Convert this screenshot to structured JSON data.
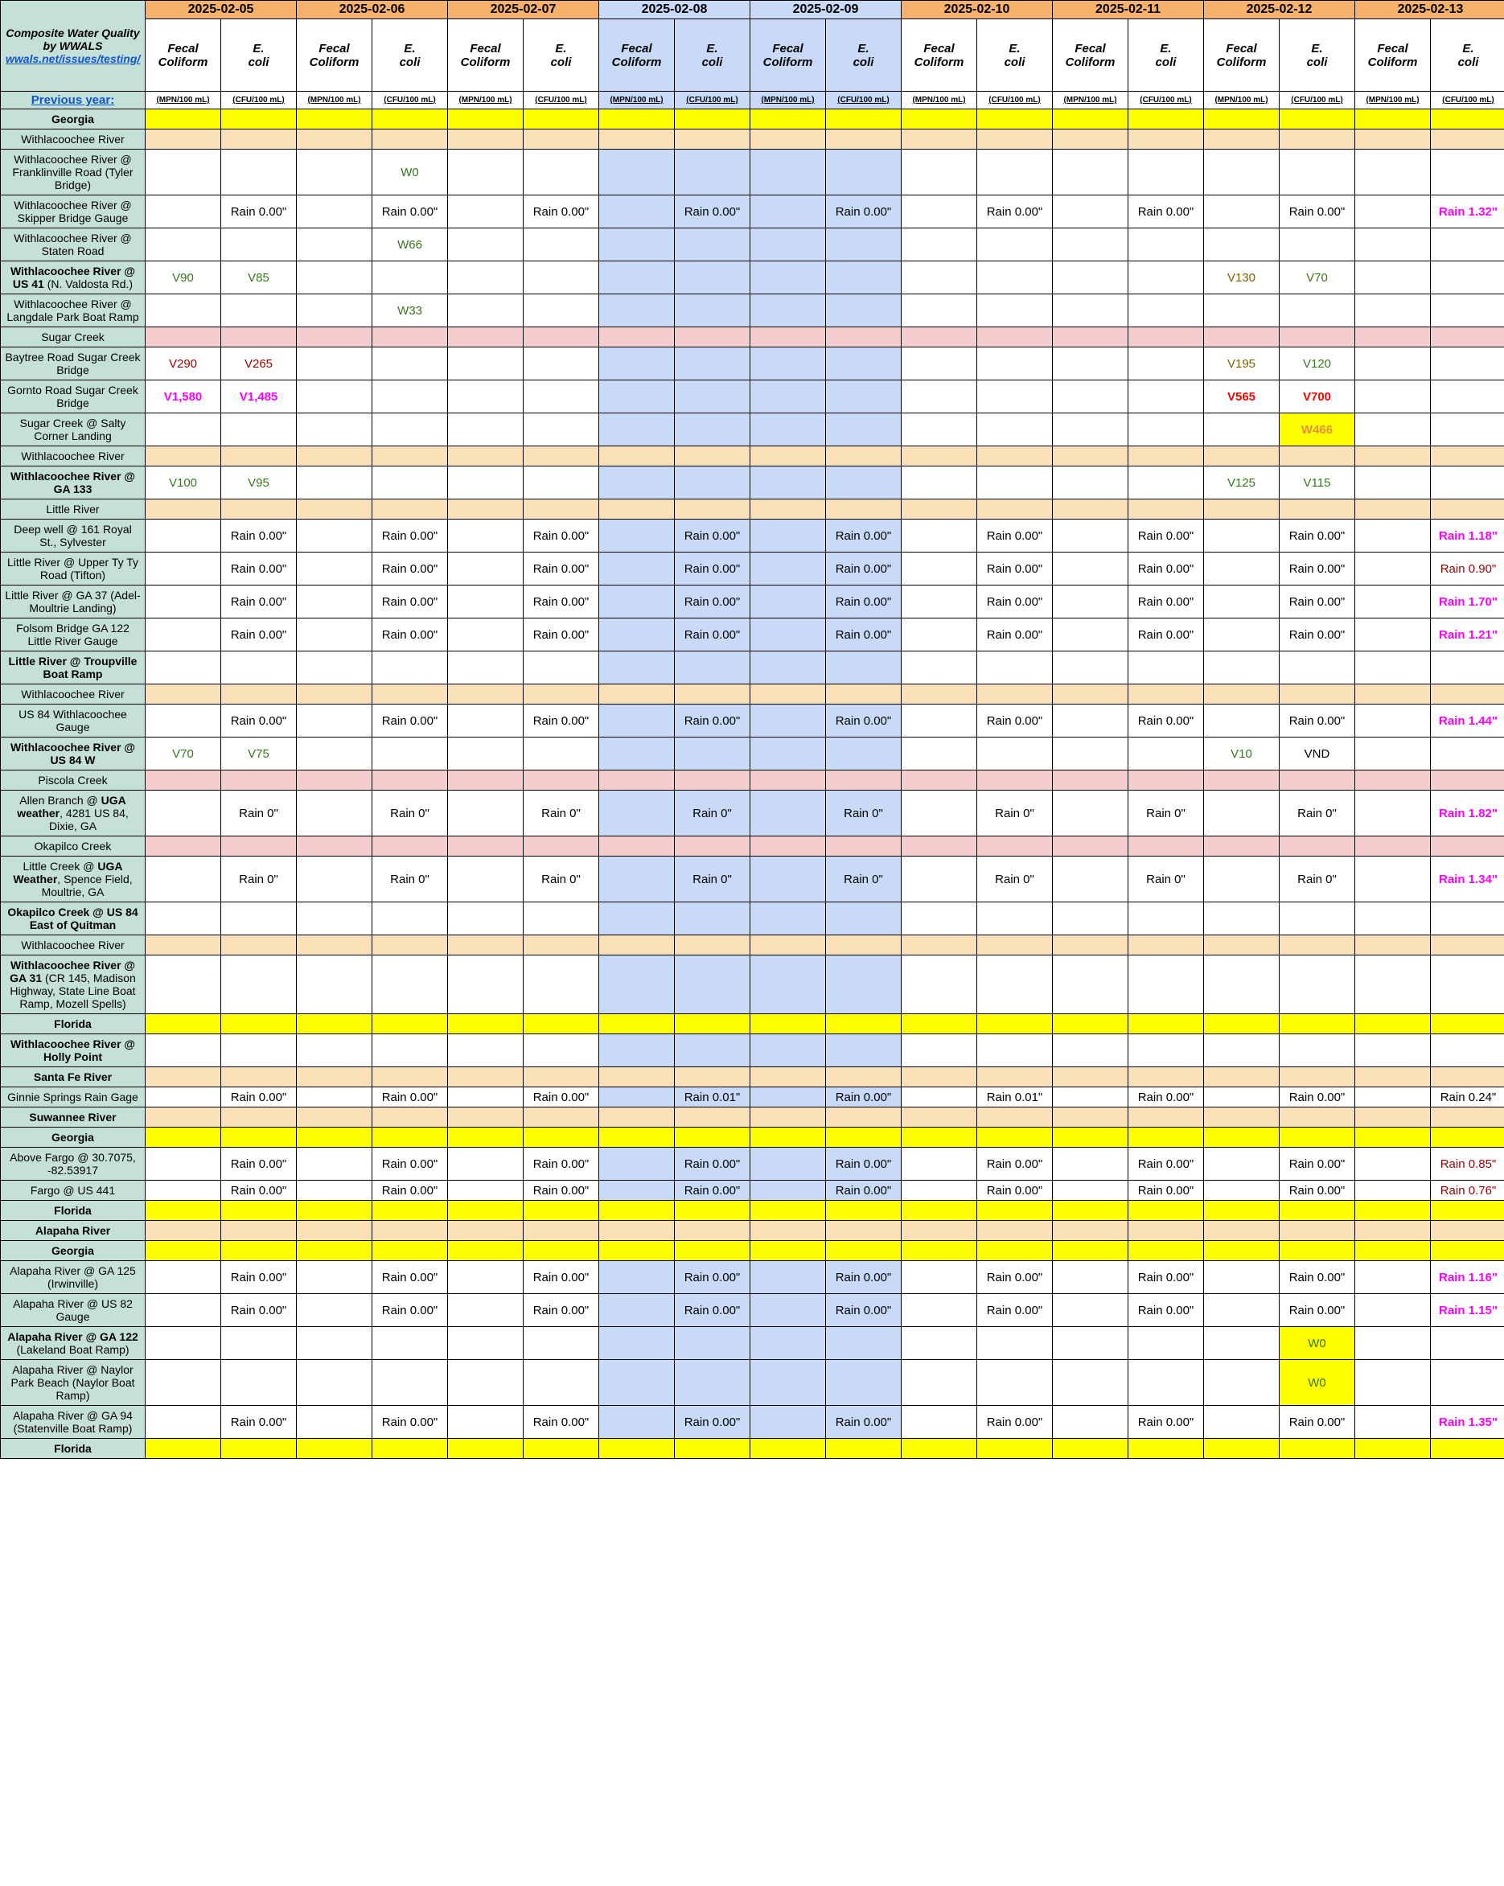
{
  "header": {
    "title": "Composite Water Quality by WWALS",
    "link_text": "wwals.net/issues/testing/",
    "prev_year": "Previous year:"
  },
  "dates": [
    "2025-02-05",
    "2025-02-06",
    "2025-02-07",
    "2025-02-08",
    "2025-02-09",
    "2025-02-10",
    "2025-02-11",
    "2025-02-12",
    "2025-02-13"
  ],
  "weekend_cols": [
    3,
    4
  ],
  "subheaders": {
    "fecal": "Fecal Coliform",
    "ecoli": "E. coli"
  },
  "units": {
    "fecal": "(MPN/100 mL)",
    "ecoli": "(CFU/100 mL)"
  },
  "colors": {
    "green": "#38761d",
    "darkred": "#990000",
    "red": "#ff0000",
    "magenta": "#ff00ff",
    "olive": "#7f6000",
    "orange": "#e69138",
    "tan": "#f9e0b7",
    "pink": "#f4cccc",
    "yellow": "#ffff00",
    "blue": "#c9daf8",
    "teal": "#c5e0d8",
    "dateOrange": "#f6b26b"
  },
  "rows": [
    {
      "label": "Georgia",
      "bold": true,
      "fill": "yellow",
      "cells": []
    },
    {
      "label": "Withlacoochee River",
      "fill": "tan",
      "cells": []
    },
    {
      "label": "Withlacoochee River @ Franklinville Road (Tyler Bridge)",
      "cells": [
        {
          "d": 1,
          "c": 1,
          "v": "W0",
          "cls": "txt-green"
        }
      ]
    },
    {
      "label": "Withlacoochee River @ Skipper Bridge Gauge",
      "cells": [
        {
          "d": 0,
          "c": 1,
          "v": "Rain 0.00\""
        },
        {
          "d": 1,
          "c": 1,
          "v": "Rain 0.00\""
        },
        {
          "d": 2,
          "c": 1,
          "v": "Rain 0.00\""
        },
        {
          "d": 3,
          "c": 1,
          "v": "Rain 0.00\""
        },
        {
          "d": 4,
          "c": 1,
          "v": "Rain 0.00\""
        },
        {
          "d": 5,
          "c": 1,
          "v": "Rain 0.00\""
        },
        {
          "d": 6,
          "c": 1,
          "v": "Rain 0.00\""
        },
        {
          "d": 7,
          "c": 1,
          "v": "Rain 0.00\""
        },
        {
          "d": 8,
          "c": 1,
          "v": "Rain 1.32\"",
          "cls": "txt-magenta"
        }
      ]
    },
    {
      "label": "Withlacoochee River @ Staten Road",
      "cells": [
        {
          "d": 1,
          "c": 1,
          "v": "W66",
          "cls": "txt-green"
        }
      ]
    },
    {
      "label": "Withlacoochee River @ US 41 (N. Valdosta Rd.)",
      "boldPrefix": "Withlacoochee River @ US 41",
      "suffix": " (N. Valdosta Rd.)",
      "cells": [
        {
          "d": 0,
          "c": 0,
          "v": "V90",
          "cls": "txt-green"
        },
        {
          "d": 0,
          "c": 1,
          "v": "V85",
          "cls": "txt-green"
        },
        {
          "d": 7,
          "c": 0,
          "v": "V130",
          "cls": "txt-olive"
        },
        {
          "d": 7,
          "c": 1,
          "v": "V70",
          "cls": "txt-green"
        }
      ]
    },
    {
      "label": "Withlacoochee River @ Langdale Park Boat Ramp",
      "cells": [
        {
          "d": 1,
          "c": 1,
          "v": "W33",
          "cls": "txt-green"
        }
      ]
    },
    {
      "label": "Sugar Creek",
      "fill": "pink",
      "cells": []
    },
    {
      "label": "Baytree Road Sugar Creek Bridge",
      "cells": [
        {
          "d": 0,
          "c": 0,
          "v": "V290",
          "cls": "txt-darkred"
        },
        {
          "d": 0,
          "c": 1,
          "v": "V265",
          "cls": "txt-darkred"
        },
        {
          "d": 7,
          "c": 0,
          "v": "V195",
          "cls": "txt-olive"
        },
        {
          "d": 7,
          "c": 1,
          "v": "V120",
          "cls": "txt-green"
        }
      ]
    },
    {
      "label": "Gornto Road Sugar Creek Bridge",
      "cells": [
        {
          "d": 0,
          "c": 0,
          "v": "V1,580",
          "cls": "txt-magenta"
        },
        {
          "d": 0,
          "c": 1,
          "v": "V1,485",
          "cls": "txt-magenta"
        },
        {
          "d": 7,
          "c": 0,
          "v": "V565",
          "cls": "txt-red"
        },
        {
          "d": 7,
          "c": 1,
          "v": "V700",
          "cls": "txt-red"
        }
      ]
    },
    {
      "label": "Sugar Creek @ Salty Corner Landing",
      "cells": [
        {
          "d": 7,
          "c": 1,
          "v": "W466",
          "cls": "txt-orange",
          "hl": "yellow"
        }
      ]
    },
    {
      "label": "Withlacoochee River",
      "fill": "tan",
      "cells": []
    },
    {
      "label": "Withlacoochee River @ GA 133",
      "bold": true,
      "cells": [
        {
          "d": 0,
          "c": 0,
          "v": "V100",
          "cls": "txt-green"
        },
        {
          "d": 0,
          "c": 1,
          "v": "V95",
          "cls": "txt-green"
        },
        {
          "d": 7,
          "c": 0,
          "v": "V125",
          "cls": "txt-green"
        },
        {
          "d": 7,
          "c": 1,
          "v": "V115",
          "cls": "txt-green"
        }
      ]
    },
    {
      "label": "Little River",
      "fill": "tan",
      "cells": []
    },
    {
      "label": "Deep well @ 161 Royal St., Sylvester",
      "cells": [
        {
          "d": 0,
          "c": 1,
          "v": "Rain 0.00\""
        },
        {
          "d": 1,
          "c": 1,
          "v": "Rain 0.00\""
        },
        {
          "d": 2,
          "c": 1,
          "v": "Rain 0.00\""
        },
        {
          "d": 3,
          "c": 1,
          "v": "Rain 0.00\""
        },
        {
          "d": 4,
          "c": 1,
          "v": "Rain 0.00\""
        },
        {
          "d": 5,
          "c": 1,
          "v": "Rain 0.00\""
        },
        {
          "d": 6,
          "c": 1,
          "v": "Rain 0.00\""
        },
        {
          "d": 7,
          "c": 1,
          "v": "Rain 0.00\""
        },
        {
          "d": 8,
          "c": 1,
          "v": "Rain 1.18\"",
          "cls": "txt-magenta"
        }
      ]
    },
    {
      "label": "Little River @ Upper Ty Ty Road (Tifton)",
      "cells": [
        {
          "d": 0,
          "c": 1,
          "v": "Rain 0.00\""
        },
        {
          "d": 1,
          "c": 1,
          "v": "Rain 0.00\""
        },
        {
          "d": 2,
          "c": 1,
          "v": "Rain 0.00\""
        },
        {
          "d": 3,
          "c": 1,
          "v": "Rain 0.00\""
        },
        {
          "d": 4,
          "c": 1,
          "v": "Rain 0.00\""
        },
        {
          "d": 5,
          "c": 1,
          "v": "Rain 0.00\""
        },
        {
          "d": 6,
          "c": 1,
          "v": "Rain 0.00\""
        },
        {
          "d": 7,
          "c": 1,
          "v": "Rain 0.00\""
        },
        {
          "d": 8,
          "c": 1,
          "v": "Rain 0.90\"",
          "cls": "txt-darkred"
        }
      ]
    },
    {
      "label": "Little River @ GA 37 (Adel-Moultrie Landing)",
      "cells": [
        {
          "d": 0,
          "c": 1,
          "v": "Rain 0.00\""
        },
        {
          "d": 1,
          "c": 1,
          "v": "Rain 0.00\""
        },
        {
          "d": 2,
          "c": 1,
          "v": "Rain 0.00\""
        },
        {
          "d": 3,
          "c": 1,
          "v": "Rain 0.00\""
        },
        {
          "d": 4,
          "c": 1,
          "v": "Rain 0.00\""
        },
        {
          "d": 5,
          "c": 1,
          "v": "Rain 0.00\""
        },
        {
          "d": 6,
          "c": 1,
          "v": "Rain 0.00\""
        },
        {
          "d": 7,
          "c": 1,
          "v": "Rain 0.00\""
        },
        {
          "d": 8,
          "c": 1,
          "v": "Rain 1.70\"",
          "cls": "txt-magenta"
        }
      ]
    },
    {
      "label": "Folsom Bridge GA 122 Little River Gauge",
      "cells": [
        {
          "d": 0,
          "c": 1,
          "v": "Rain 0.00\""
        },
        {
          "d": 1,
          "c": 1,
          "v": "Rain 0.00\""
        },
        {
          "d": 2,
          "c": 1,
          "v": "Rain 0.00\""
        },
        {
          "d": 3,
          "c": 1,
          "v": "Rain 0.00\""
        },
        {
          "d": 4,
          "c": 1,
          "v": "Rain 0.00\""
        },
        {
          "d": 5,
          "c": 1,
          "v": "Rain 0.00\""
        },
        {
          "d": 6,
          "c": 1,
          "v": "Rain 0.00\""
        },
        {
          "d": 7,
          "c": 1,
          "v": "Rain 0.00\""
        },
        {
          "d": 8,
          "c": 1,
          "v": "Rain 1.21\"",
          "cls": "txt-magenta"
        }
      ]
    },
    {
      "label": "Little River @ Troupville Boat Ramp",
      "bold": true,
      "cells": []
    },
    {
      "label": "Withlacoochee River",
      "fill": "tan",
      "cells": []
    },
    {
      "label": "US 84 Withlacoochee Gauge",
      "cells": [
        {
          "d": 0,
          "c": 1,
          "v": "Rain 0.00\""
        },
        {
          "d": 1,
          "c": 1,
          "v": "Rain 0.00\""
        },
        {
          "d": 2,
          "c": 1,
          "v": "Rain 0.00\""
        },
        {
          "d": 3,
          "c": 1,
          "v": "Rain 0.00\""
        },
        {
          "d": 4,
          "c": 1,
          "v": "Rain 0.00\""
        },
        {
          "d": 5,
          "c": 1,
          "v": "Rain 0.00\""
        },
        {
          "d": 6,
          "c": 1,
          "v": "Rain 0.00\""
        },
        {
          "d": 7,
          "c": 1,
          "v": "Rain 0.00\""
        },
        {
          "d": 8,
          "c": 1,
          "v": "Rain 1.44\"",
          "cls": "txt-magenta"
        }
      ]
    },
    {
      "label": "Withlacoochee River @ US 84 W",
      "bold": true,
      "cells": [
        {
          "d": 0,
          "c": 0,
          "v": "V70",
          "cls": "txt-green"
        },
        {
          "d": 0,
          "c": 1,
          "v": "V75",
          "cls": "txt-green"
        },
        {
          "d": 7,
          "c": 0,
          "v": "V10",
          "cls": "txt-green"
        },
        {
          "d": 7,
          "c": 1,
          "v": "VND"
        }
      ]
    },
    {
      "label": "Piscola Creek",
      "fill": "pink",
      "cells": []
    },
    {
      "label": "Allen  Branch @ UGA weather, 4281 US 84, Dixie, GA",
      "boldPart": "UGA weather",
      "cells": [
        {
          "d": 0,
          "c": 1,
          "v": "Rain 0\""
        },
        {
          "d": 1,
          "c": 1,
          "v": "Rain 0\""
        },
        {
          "d": 2,
          "c": 1,
          "v": "Rain 0\""
        },
        {
          "d": 3,
          "c": 1,
          "v": "Rain 0\""
        },
        {
          "d": 4,
          "c": 1,
          "v": "Rain 0\""
        },
        {
          "d": 5,
          "c": 1,
          "v": "Rain 0\""
        },
        {
          "d": 6,
          "c": 1,
          "v": "Rain 0\""
        },
        {
          "d": 7,
          "c": 1,
          "v": "Rain 0\""
        },
        {
          "d": 8,
          "c": 1,
          "v": "Rain 1.82\"",
          "cls": "txt-magenta"
        }
      ]
    },
    {
      "label": "Okapilco Creek",
      "fill": "pink",
      "cells": []
    },
    {
      "label": "Little Creek @ UGA Weather, Spence Field, Moultrie, GA",
      "boldPart": "UGA Weather",
      "cells": [
        {
          "d": 0,
          "c": 1,
          "v": "Rain 0\""
        },
        {
          "d": 1,
          "c": 1,
          "v": "Rain 0\""
        },
        {
          "d": 2,
          "c": 1,
          "v": "Rain 0\""
        },
        {
          "d": 3,
          "c": 1,
          "v": "Rain 0\""
        },
        {
          "d": 4,
          "c": 1,
          "v": "Rain 0\""
        },
        {
          "d": 5,
          "c": 1,
          "v": "Rain 0\""
        },
        {
          "d": 6,
          "c": 1,
          "v": "Rain 0\""
        },
        {
          "d": 7,
          "c": 1,
          "v": "Rain 0\""
        },
        {
          "d": 8,
          "c": 1,
          "v": "Rain 1.34\"",
          "cls": "txt-magenta"
        }
      ]
    },
    {
      "label": "Okapilco Creek @ US 84 East of Quitman",
      "bold": true,
      "cells": []
    },
    {
      "label": "Withlacoochee River",
      "fill": "tan",
      "cells": []
    },
    {
      "label": "Withlacoochee River @ GA 31 (CR 145, Madison Highway, State Line Boat Ramp, Mozell Spells)",
      "boldPrefix": "Withlacoochee River @ GA 31",
      "suffix": " (CR 145, Madison Highway, State Line Boat Ramp, Mozell Spells)",
      "cells": []
    },
    {
      "label": "Florida",
      "bold": true,
      "fill": "yellow",
      "cells": []
    },
    {
      "label": "Withlacoochee River @ Holly Point",
      "bold": true,
      "cells": []
    },
    {
      "label": "Santa Fe River",
      "bold": true,
      "fill": "tan",
      "cells": []
    },
    {
      "label": "Ginnie Springs Rain Gage",
      "cells": [
        {
          "d": 0,
          "c": 1,
          "v": "Rain 0.00\""
        },
        {
          "d": 1,
          "c": 1,
          "v": "Rain 0.00\""
        },
        {
          "d": 2,
          "c": 1,
          "v": "Rain 0.00\""
        },
        {
          "d": 3,
          "c": 1,
          "v": "Rain 0.01\""
        },
        {
          "d": 4,
          "c": 1,
          "v": "Rain 0.00\""
        },
        {
          "d": 5,
          "c": 1,
          "v": "Rain 0.01\""
        },
        {
          "d": 6,
          "c": 1,
          "v": "Rain 0.00\""
        },
        {
          "d": 7,
          "c": 1,
          "v": "Rain 0.00\""
        },
        {
          "d": 8,
          "c": 1,
          "v": "Rain 0.24\""
        }
      ]
    },
    {
      "label": "Suwannee River",
      "bold": true,
      "fill": "tan",
      "cells": []
    },
    {
      "label": "Georgia",
      "bold": true,
      "fill": "yellow",
      "cells": []
    },
    {
      "label": "Above Fargo @ 30.7075, -82.53917",
      "cells": [
        {
          "d": 0,
          "c": 1,
          "v": "Rain 0.00\""
        },
        {
          "d": 1,
          "c": 1,
          "v": "Rain 0.00\""
        },
        {
          "d": 2,
          "c": 1,
          "v": "Rain 0.00\""
        },
        {
          "d": 3,
          "c": 1,
          "v": "Rain 0.00\""
        },
        {
          "d": 4,
          "c": 1,
          "v": "Rain 0.00\""
        },
        {
          "d": 5,
          "c": 1,
          "v": "Rain 0.00\""
        },
        {
          "d": 6,
          "c": 1,
          "v": "Rain 0.00\""
        },
        {
          "d": 7,
          "c": 1,
          "v": "Rain 0.00\""
        },
        {
          "d": 8,
          "c": 1,
          "v": "Rain 0.85\"",
          "cls": "txt-darkred"
        }
      ]
    },
    {
      "label": "Fargo @ US 441",
      "cells": [
        {
          "d": 0,
          "c": 1,
          "v": "Rain 0.00\""
        },
        {
          "d": 1,
          "c": 1,
          "v": "Rain 0.00\""
        },
        {
          "d": 2,
          "c": 1,
          "v": "Rain 0.00\""
        },
        {
          "d": 3,
          "c": 1,
          "v": "Rain 0.00\""
        },
        {
          "d": 4,
          "c": 1,
          "v": "Rain 0.00\""
        },
        {
          "d": 5,
          "c": 1,
          "v": "Rain 0.00\""
        },
        {
          "d": 6,
          "c": 1,
          "v": "Rain 0.00\""
        },
        {
          "d": 7,
          "c": 1,
          "v": "Rain 0.00\""
        },
        {
          "d": 8,
          "c": 1,
          "v": "Rain 0.76\"",
          "cls": "txt-darkred"
        }
      ]
    },
    {
      "label": "Florida",
      "bold": true,
      "fill": "yellow",
      "cells": []
    },
    {
      "label": "Alapaha River",
      "bold": true,
      "fill": "tan",
      "cells": []
    },
    {
      "label": "Georgia",
      "bold": true,
      "fill": "yellow",
      "cells": []
    },
    {
      "label": "Alapaha River @ GA 125 (Irwinville)",
      "cells": [
        {
          "d": 0,
          "c": 1,
          "v": "Rain 0.00\""
        },
        {
          "d": 1,
          "c": 1,
          "v": "Rain 0.00\""
        },
        {
          "d": 2,
          "c": 1,
          "v": "Rain 0.00\""
        },
        {
          "d": 3,
          "c": 1,
          "v": "Rain 0.00\""
        },
        {
          "d": 4,
          "c": 1,
          "v": "Rain 0.00\""
        },
        {
          "d": 5,
          "c": 1,
          "v": "Rain 0.00\""
        },
        {
          "d": 6,
          "c": 1,
          "v": "Rain 0.00\""
        },
        {
          "d": 7,
          "c": 1,
          "v": "Rain 0.00\""
        },
        {
          "d": 8,
          "c": 1,
          "v": "Rain 1.16\"",
          "cls": "txt-magenta"
        }
      ]
    },
    {
      "label": "Alapaha River @ US 82 Gauge",
      "cells": [
        {
          "d": 0,
          "c": 1,
          "v": "Rain 0.00\""
        },
        {
          "d": 1,
          "c": 1,
          "v": "Rain 0.00\""
        },
        {
          "d": 2,
          "c": 1,
          "v": "Rain 0.00\""
        },
        {
          "d": 3,
          "c": 1,
          "v": "Rain 0.00\""
        },
        {
          "d": 4,
          "c": 1,
          "v": "Rain 0.00\""
        },
        {
          "d": 5,
          "c": 1,
          "v": "Rain 0.00\""
        },
        {
          "d": 6,
          "c": 1,
          "v": "Rain 0.00\""
        },
        {
          "d": 7,
          "c": 1,
          "v": "Rain 0.00\""
        },
        {
          "d": 8,
          "c": 1,
          "v": "Rain 1.15\"",
          "cls": "txt-magenta"
        }
      ]
    },
    {
      "label": "Alapaha River @ GA 122 (Lakeland Boat Ramp)",
      "boldPrefix": "Alapaha River @ GA 122",
      "suffix": " (Lakeland Boat Ramp)",
      "cells": [
        {
          "d": 7,
          "c": 1,
          "v": "W0",
          "cls": "txt-green",
          "hl": "yellow"
        }
      ]
    },
    {
      "label": "Alapaha River @ Naylor Park Beach (Naylor Boat Ramp)",
      "cells": [
        {
          "d": 7,
          "c": 1,
          "v": "W0",
          "cls": "txt-green",
          "hl": "yellow"
        }
      ]
    },
    {
      "label": "Alapaha River @ GA 94 (Statenville Boat Ramp)",
      "cells": [
        {
          "d": 0,
          "c": 1,
          "v": "Rain 0.00\""
        },
        {
          "d": 1,
          "c": 1,
          "v": "Rain 0.00\""
        },
        {
          "d": 2,
          "c": 1,
          "v": "Rain 0.00\""
        },
        {
          "d": 3,
          "c": 1,
          "v": "Rain 0.00\""
        },
        {
          "d": 4,
          "c": 1,
          "v": "Rain 0.00\""
        },
        {
          "d": 5,
          "c": 1,
          "v": "Rain 0.00\""
        },
        {
          "d": 6,
          "c": 1,
          "v": "Rain 0.00\""
        },
        {
          "d": 7,
          "c": 1,
          "v": "Rain 0.00\""
        },
        {
          "d": 8,
          "c": 1,
          "v": "Rain 1.35\"",
          "cls": "txt-magenta"
        }
      ]
    },
    {
      "label": "Florida",
      "bold": true,
      "fill": "yellow",
      "cells": []
    }
  ]
}
